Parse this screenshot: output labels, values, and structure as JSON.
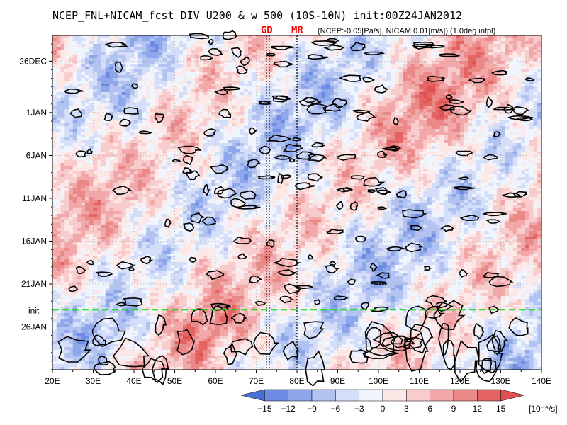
{
  "chart_data": {
    "type": "heatmap",
    "title": "NCEP_FNL+NICAM_fcst DIV U200 & w 500 (10S-10N) init:00Z24JAN2012",
    "subtitle": "(NCEP:-0.05[Pa/s], NICAM:0.01[m/s]) (1.0deg intpl)",
    "x": {
      "label": "",
      "range_deg_east": [
        20,
        140
      ],
      "ticks": [
        20,
        30,
        40,
        50,
        60,
        70,
        80,
        90,
        100,
        110,
        120,
        130,
        140
      ],
      "tick_labels": [
        "20E",
        "30E",
        "40E",
        "50E",
        "60E",
        "70E",
        "80E",
        "90E",
        "100E",
        "110E",
        "120E",
        "130E",
        "140E"
      ]
    },
    "y": {
      "label": "",
      "range": [
        "23DEC2011",
        "31JAN2012"
      ],
      "direction": "time increases downward",
      "ticks": [
        "26DEC",
        "1JAN",
        "6JAN",
        "11JAN",
        "16JAN",
        "21JAN",
        "26JAN"
      ]
    },
    "init_line": {
      "label": "init",
      "date": "24JAN2012",
      "color": "#00dd00",
      "style": "dashed"
    },
    "longitude_markers": [
      {
        "label": "GD",
        "lon": 72.5,
        "color": "#ff0000"
      },
      {
        "label": "GD",
        "lon": 73.2,
        "color": "#ff0000"
      },
      {
        "label": "MR",
        "lon": 80.0,
        "color": "#ff0000"
      }
    ],
    "colorbar": {
      "levels": [
        "−15",
        "−12",
        "−9",
        "−6",
        "−3",
        "0",
        "3",
        "6",
        "9",
        "12",
        "15"
      ],
      "unit": "[10⁻⁶/s]",
      "colors": [
        "#4a6fd6",
        "#6d8be2",
        "#8ea6ea",
        "#b2c3f2",
        "#d5def8",
        "#f0f4fd",
        "#fde8e8",
        "#f8cccc",
        "#f2a8a8",
        "#eb8888",
        "#e46464",
        "#e05050"
      ]
    },
    "contours": {
      "field": "w 500",
      "color": "#000000",
      "thresholds": [
        "NCEP:-0.05[Pa/s]",
        "NICAM:0.01[m/s]"
      ]
    },
    "grid": true
  }
}
